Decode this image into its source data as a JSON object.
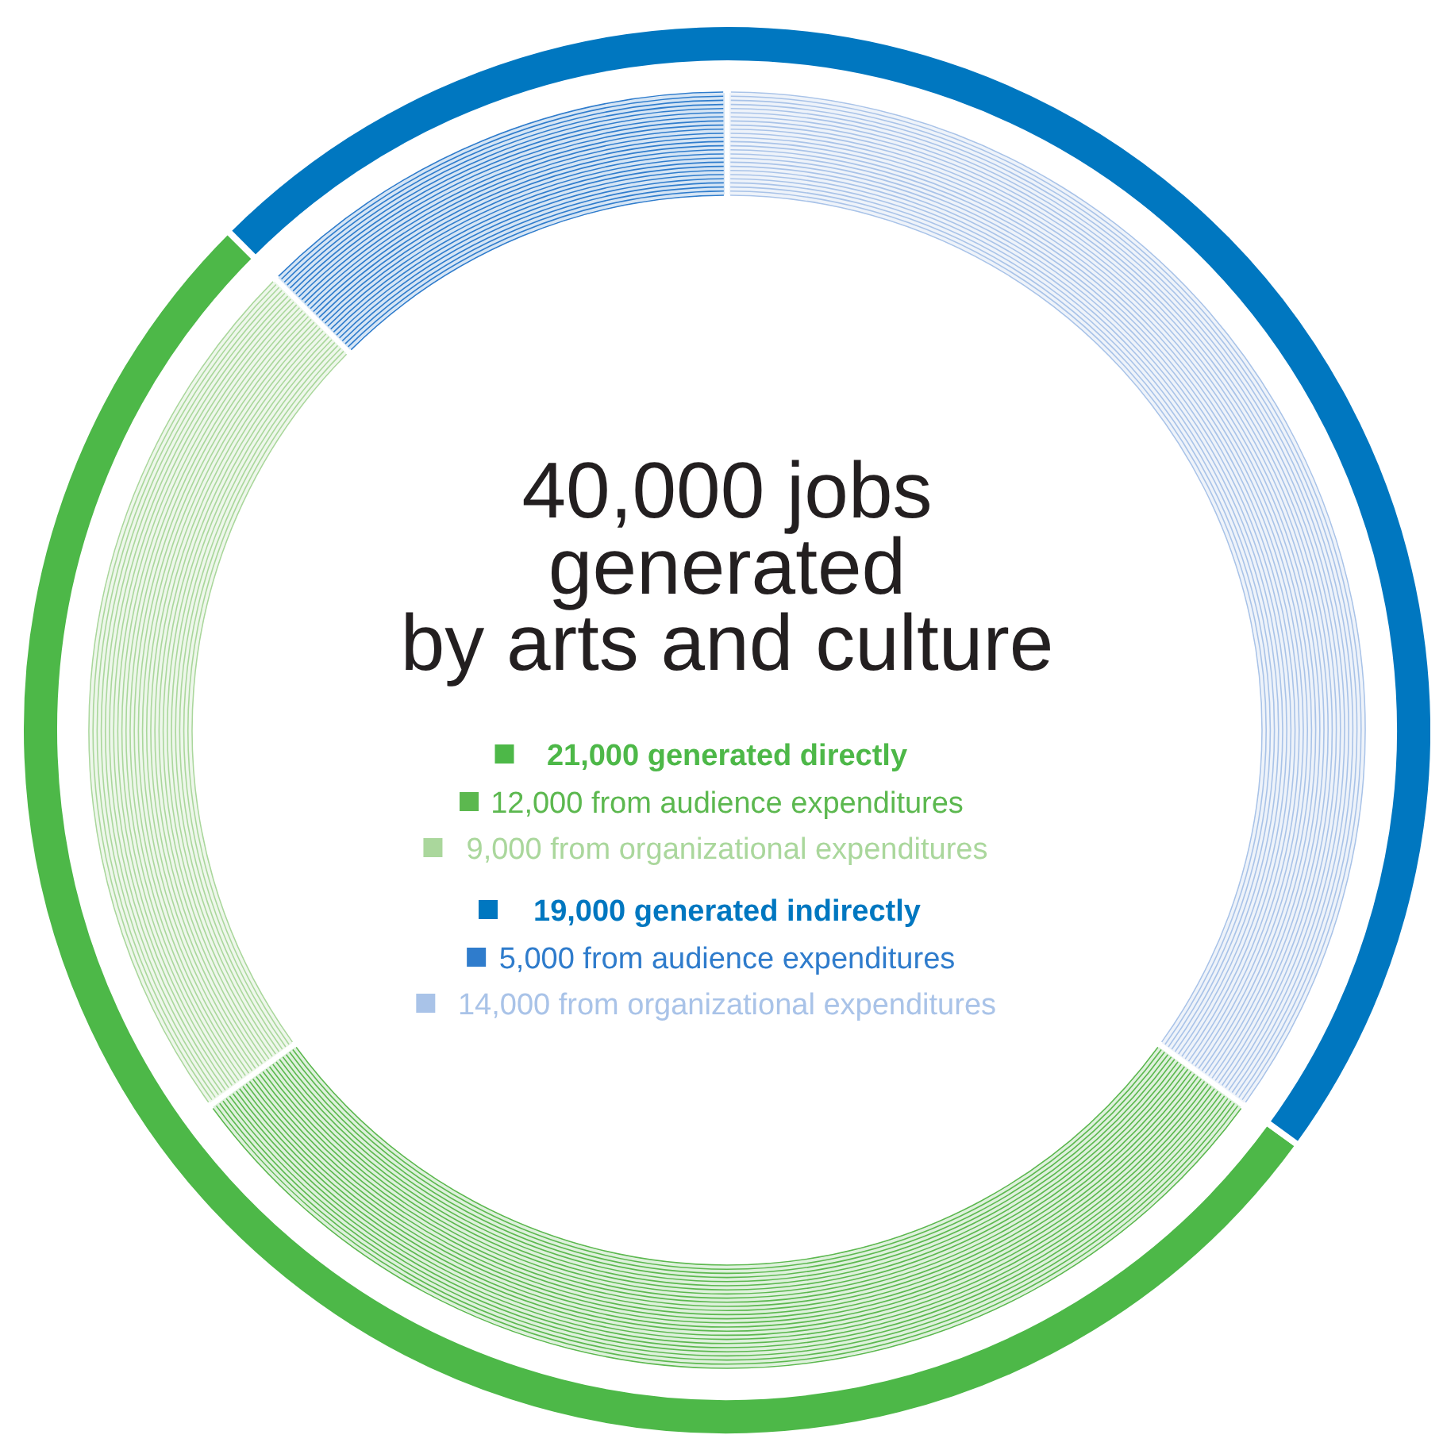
{
  "chart_data": [
    {
      "type": "donut",
      "title": "40,000 jobs\ngenerated\nby arts and culture",
      "categories": [
        "21,000 generated directly",
        "19,000 generated indirectly"
      ],
      "values": [
        21000,
        19000
      ],
      "legend": "center",
      "colors": [
        "#4db848",
        "#0077c0"
      ]
    },
    {
      "type": "donut",
      "categories": [
        "12,000 from audience expenditures",
        "9,000 from organizational expenditures",
        "5,000 from audience expenditures",
        "14,000 from organizational expenditures"
      ],
      "values": [
        12000,
        9000,
        5000,
        14000
      ],
      "legend": "center",
      "colors": [
        "#5cb84f",
        "#aad79c",
        "#2f7ccc",
        "#a9c3e8"
      ]
    }
  ]
}
